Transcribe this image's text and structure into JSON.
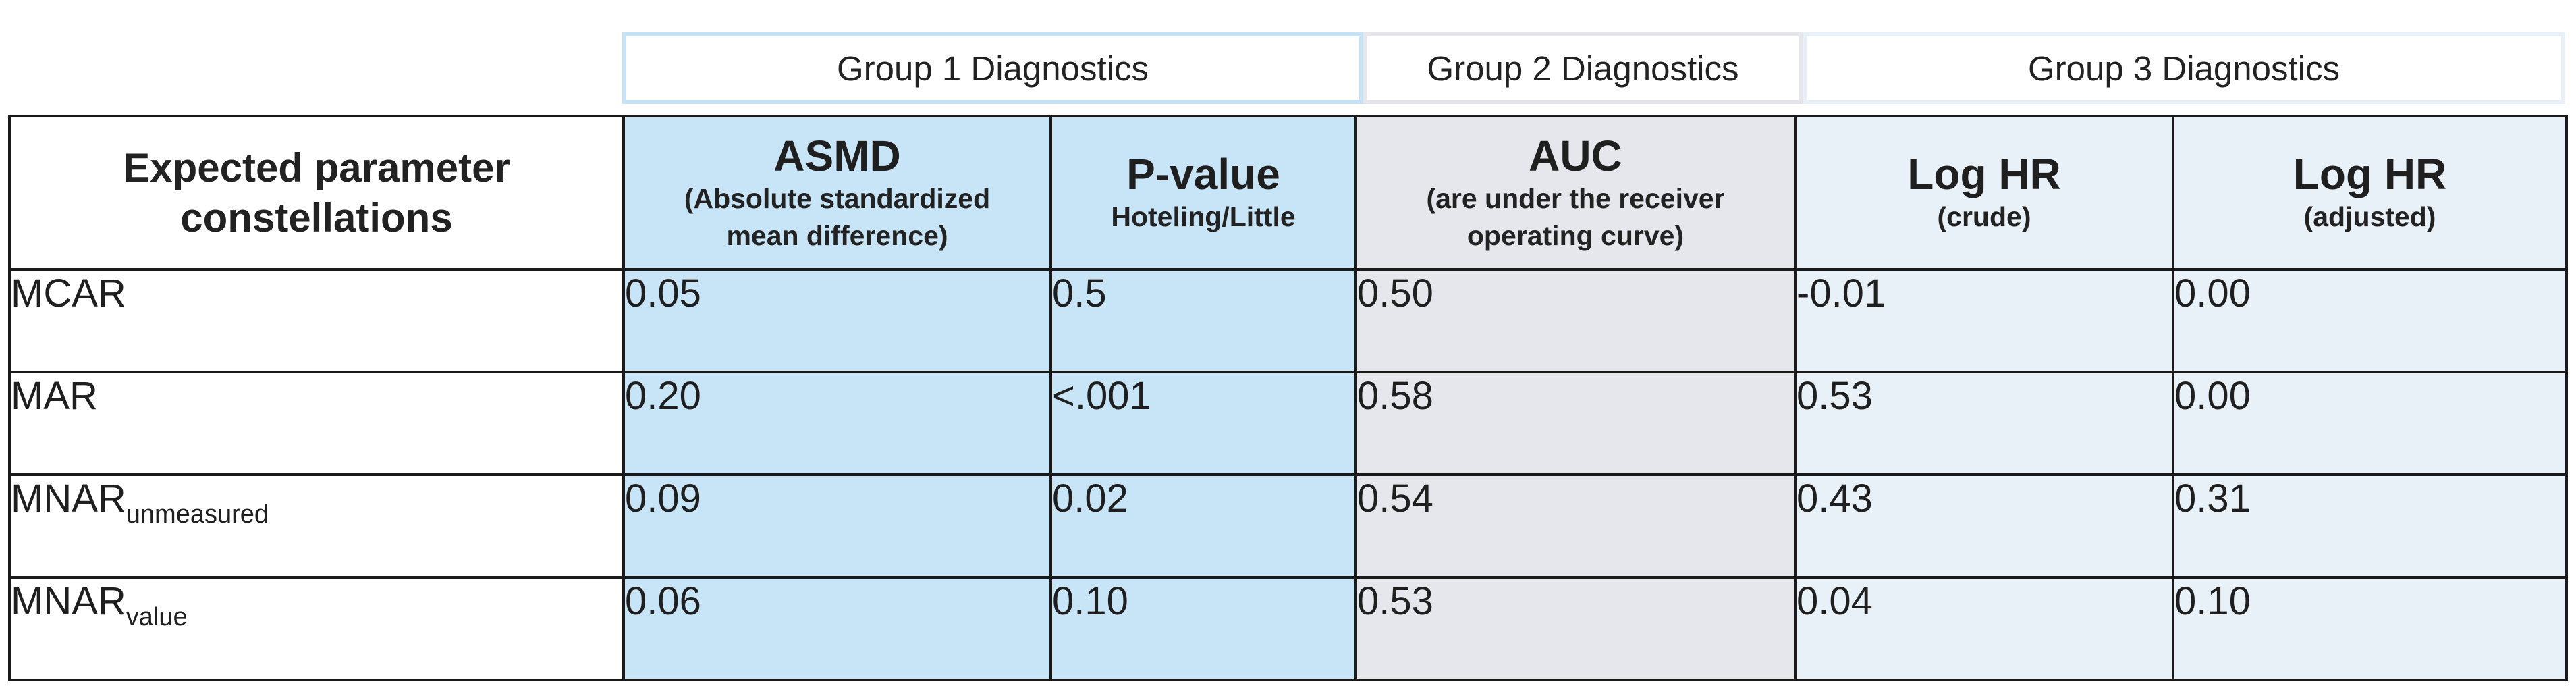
{
  "groups": [
    {
      "label": "Group 1 Diagnostics"
    },
    {
      "label": "Group 2 Diagnostics"
    },
    {
      "label": "Group 3 Diagnostics"
    }
  ],
  "table": {
    "corner_header": "Expected parameter constellations",
    "columns": [
      {
        "title": "ASMD",
        "subtitle": "(Absolute standardized mean difference)"
      },
      {
        "title": "P-value",
        "subtitle": "Hoteling/Little"
      },
      {
        "title": "AUC",
        "subtitle": "(are under the receiver operating curve)"
      },
      {
        "title": "Log HR",
        "subtitle": "(crude)"
      },
      {
        "title": "Log HR",
        "subtitle": "(adjusted)"
      }
    ],
    "rows": [
      {
        "label": "MCAR",
        "label_sub": "",
        "values": [
          "0.05",
          "0.5",
          "0.50",
          "-0.01",
          "0.00"
        ]
      },
      {
        "label": "MAR",
        "label_sub": "",
        "values": [
          "0.20",
          "<.001",
          "0.58",
          "0.53",
          "0.00"
        ]
      },
      {
        "label": "MNAR",
        "label_sub": "unmeasured",
        "values": [
          "0.09",
          "0.02",
          "0.54",
          "0.43",
          "0.31"
        ]
      },
      {
        "label": "MNAR",
        "label_sub": "value",
        "values": [
          "0.06",
          "0.10",
          "0.53",
          "0.04",
          "0.10"
        ]
      }
    ]
  },
  "colors": {
    "group1": "#c8e5f8",
    "group2": "#e6e7ec",
    "group3": "#e9f1f8",
    "border": "#1a1a1a"
  }
}
